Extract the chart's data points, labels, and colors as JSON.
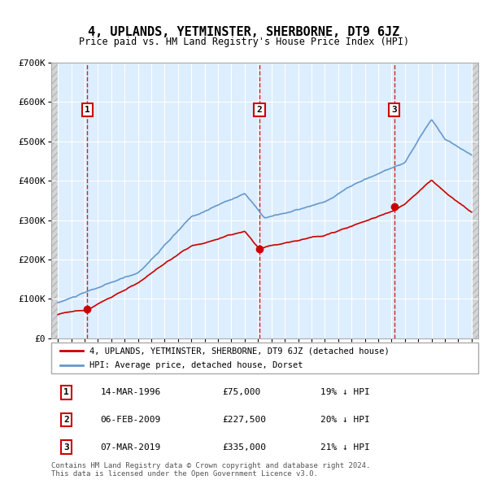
{
  "title": "4, UPLANDS, YETMINSTER, SHERBORNE, DT9 6JZ",
  "subtitle": "Price paid vs. HM Land Registry's House Price Index (HPI)",
  "ylim": [
    0,
    700000
  ],
  "yticks": [
    0,
    100000,
    200000,
    300000,
    400000,
    500000,
    600000,
    700000
  ],
  "ytick_labels": [
    "£0",
    "£100K",
    "£200K",
    "£300K",
    "£400K",
    "£500K",
    "£600K",
    "£700K"
  ],
  "xlim_start": 1993.5,
  "xlim_end": 2025.5,
  "sale_dates": [
    1996.2,
    2009.1,
    2019.2
  ],
  "sale_prices": [
    75000,
    227500,
    335000
  ],
  "hpi_color": "#6699cc",
  "sale_color": "#cc0000",
  "dashed_color": "#cc0000",
  "background_plot": "#ddeeff",
  "grid_color": "#ffffff",
  "legend_entries": [
    "4, UPLANDS, YETMINSTER, SHERBORNE, DT9 6JZ (detached house)",
    "HPI: Average price, detached house, Dorset"
  ],
  "table_rows": [
    [
      "1",
      "14-MAR-1996",
      "£75,000",
      "19% ↓ HPI"
    ],
    [
      "2",
      "06-FEB-2009",
      "£227,500",
      "20% ↓ HPI"
    ],
    [
      "3",
      "07-MAR-2019",
      "£335,000",
      "21% ↓ HPI"
    ]
  ],
  "footer": "Contains HM Land Registry data © Crown copyright and database right 2024.\nThis data is licensed under the Open Government Licence v3.0."
}
